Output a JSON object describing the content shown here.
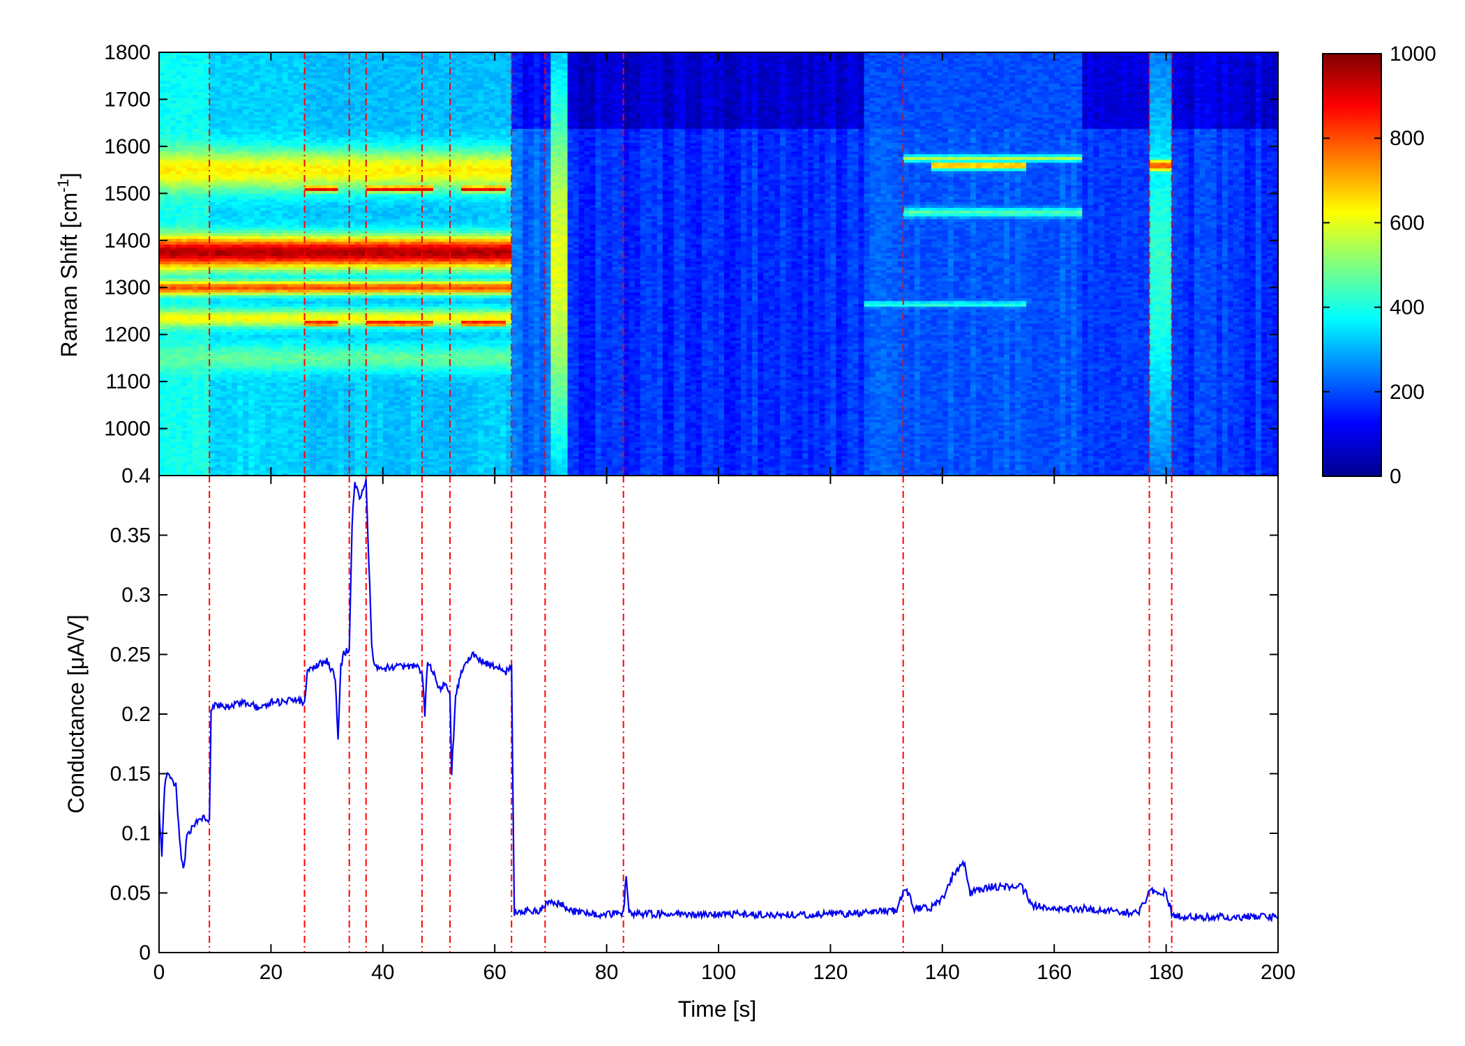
{
  "chart_data": [
    {
      "type": "heatmap",
      "title": "",
      "xlabel": "",
      "ylabel": "Raman Shift [cm",
      "ylabel_sup": "-1",
      "ylabel_tail": "]",
      "xlim": [
        0,
        200
      ],
      "ylim": [
        900,
        1800
      ],
      "y_ticks": [
        1000,
        1100,
        1200,
        1300,
        1400,
        1500,
        1600,
        1700,
        1800
      ],
      "y_tick_labels": [
        "1000",
        "1100",
        "1200",
        "1300",
        "1400",
        "1500",
        "1600",
        "1700",
        "1800"
      ],
      "colorbar": {
        "min": 0,
        "max": 1000,
        "ticks": [
          0,
          200,
          400,
          600,
          800,
          1000
        ],
        "tick_labels": [
          "0",
          "200",
          "400",
          "600",
          "800",
          "1000"
        ],
        "colormap": "jet"
      },
      "background_intensity_by_segment": [
        {
          "t_start": 0,
          "t_end": 9,
          "level": 380
        },
        {
          "t_start": 9,
          "t_end": 26,
          "level": 330
        },
        {
          "t_start": 26,
          "t_end": 63,
          "level": 310
        },
        {
          "t_start": 63,
          "t_end": 73,
          "level": 230
        },
        {
          "t_start": 73,
          "t_end": 126,
          "level": 170
        },
        {
          "t_start": 126,
          "t_end": 165,
          "level": 200
        },
        {
          "t_start": 165,
          "t_end": 200,
          "level": 180
        }
      ],
      "bands": [
        {
          "t_start": 0,
          "t_end": 63,
          "shift": 1375,
          "width": 70,
          "intensity": 950
        },
        {
          "t_start": 0,
          "t_end": 63,
          "shift": 1300,
          "width": 30,
          "intensity": 800
        },
        {
          "t_start": 0,
          "t_end": 63,
          "shift": 1550,
          "width": 90,
          "intensity": 640
        },
        {
          "t_start": 0,
          "t_end": 63,
          "shift": 1235,
          "width": 40,
          "intensity": 620
        },
        {
          "t_start": 0,
          "t_end": 63,
          "shift": 1150,
          "width": 60,
          "intensity": 470
        },
        {
          "t_start": 26,
          "t_end": 32,
          "shift": 1510,
          "width": 14,
          "intensity": 900
        },
        {
          "t_start": 37,
          "t_end": 49,
          "shift": 1510,
          "width": 14,
          "intensity": 900
        },
        {
          "t_start": 54,
          "t_end": 62,
          "shift": 1510,
          "width": 14,
          "intensity": 900
        },
        {
          "t_start": 26,
          "t_end": 32,
          "shift": 1225,
          "width": 14,
          "intensity": 880
        },
        {
          "t_start": 37,
          "t_end": 49,
          "shift": 1225,
          "width": 14,
          "intensity": 880
        },
        {
          "t_start": 54,
          "t_end": 62,
          "shift": 1225,
          "width": 14,
          "intensity": 880
        },
        {
          "t_start": 70,
          "t_end": 73,
          "shift": 1350,
          "width": 800,
          "intensity": 600
        },
        {
          "t_start": 133,
          "t_end": 165,
          "shift": 1575,
          "width": 14,
          "intensity": 560
        },
        {
          "t_start": 138,
          "t_end": 155,
          "shift": 1560,
          "width": 18,
          "intensity": 720
        },
        {
          "t_start": 133,
          "t_end": 165,
          "shift": 1460,
          "width": 20,
          "intensity": 460
        },
        {
          "t_start": 126,
          "t_end": 155,
          "shift": 1265,
          "width": 12,
          "intensity": 430
        },
        {
          "t_start": 177,
          "t_end": 181,
          "shift": 1560,
          "width": 30,
          "intensity": 800
        },
        {
          "t_start": 177,
          "t_end": 181,
          "shift": 1350,
          "width": 800,
          "intensity": 420
        }
      ]
    },
    {
      "type": "line",
      "title": "",
      "xlabel": "Time [s]",
      "ylabel": "Conductance [μA/V]",
      "xlim": [
        0,
        200
      ],
      "ylim": [
        0,
        0.4
      ],
      "x_ticks": [
        0,
        20,
        40,
        60,
        80,
        100,
        120,
        140,
        160,
        180,
        200
      ],
      "x_tick_labels": [
        "0",
        "20",
        "40",
        "60",
        "80",
        "100",
        "120",
        "140",
        "160",
        "180",
        "200"
      ],
      "y_ticks": [
        0,
        0.05,
        0.1,
        0.15,
        0.2,
        0.25,
        0.3,
        0.35,
        0.4
      ],
      "y_tick_labels": [
        "0",
        "0.05",
        "0.1",
        "0.15",
        "0.2",
        "0.25",
        "0.3",
        "0.35",
        "0.4"
      ],
      "grid": false,
      "series": [
        {
          "color": "#0000ee",
          "x": [
            0,
            0.5,
            1,
            1.5,
            2,
            3,
            4,
            4.5,
            5,
            6,
            7,
            8,
            9,
            9.3,
            10,
            12,
            15,
            18,
            20,
            22,
            24,
            26,
            26.5,
            28,
            30,
            31.5,
            32,
            32.5,
            33,
            34,
            34.5,
            35,
            36,
            37,
            38,
            38.5,
            40,
            42,
            44,
            46,
            47,
            47.5,
            48,
            49,
            50,
            51,
            52,
            52.3,
            53,
            54,
            56,
            58,
            60,
            62,
            63,
            63.5,
            64,
            66,
            68,
            69,
            70,
            72,
            74,
            76,
            80,
            82,
            83,
            83.5,
            84,
            90,
            100,
            110,
            120,
            126,
            130,
            132,
            133,
            134,
            135,
            138,
            140,
            141,
            142,
            143,
            144,
            145,
            146,
            148,
            150,
            152,
            154,
            155,
            156,
            160,
            165,
            170,
            175,
            177,
            178,
            180,
            181,
            182,
            185,
            190,
            195,
            200
          ],
          "y": [
            0.12,
            0.08,
            0.14,
            0.15,
            0.145,
            0.14,
            0.075,
            0.072,
            0.1,
            0.105,
            0.11,
            0.115,
            0.11,
            0.2,
            0.21,
            0.205,
            0.21,
            0.205,
            0.21,
            0.21,
            0.212,
            0.21,
            0.235,
            0.24,
            0.245,
            0.23,
            0.18,
            0.24,
            0.25,
            0.255,
            0.36,
            0.395,
            0.38,
            0.395,
            0.26,
            0.24,
            0.238,
            0.24,
            0.24,
            0.24,
            0.235,
            0.2,
            0.245,
            0.235,
            0.22,
            0.225,
            0.215,
            0.15,
            0.215,
            0.235,
            0.25,
            0.243,
            0.24,
            0.235,
            0.24,
            0.033,
            0.035,
            0.035,
            0.035,
            0.04,
            0.043,
            0.04,
            0.035,
            0.033,
            0.032,
            0.033,
            0.033,
            0.065,
            0.033,
            0.032,
            0.032,
            0.032,
            0.032,
            0.033,
            0.035,
            0.035,
            0.053,
            0.05,
            0.037,
            0.038,
            0.045,
            0.055,
            0.067,
            0.07,
            0.075,
            0.05,
            0.052,
            0.055,
            0.055,
            0.055,
            0.055,
            0.05,
            0.04,
            0.036,
            0.037,
            0.035,
            0.033,
            0.05,
            0.052,
            0.05,
            0.033,
            0.03,
            0.03,
            0.03,
            0.03,
            0.03
          ]
        }
      ],
      "event_lines_x": [
        9,
        26,
        34,
        37,
        47,
        52,
        63,
        69,
        83,
        133,
        177,
        181
      ],
      "event_line_color": "#ff0000"
    }
  ]
}
